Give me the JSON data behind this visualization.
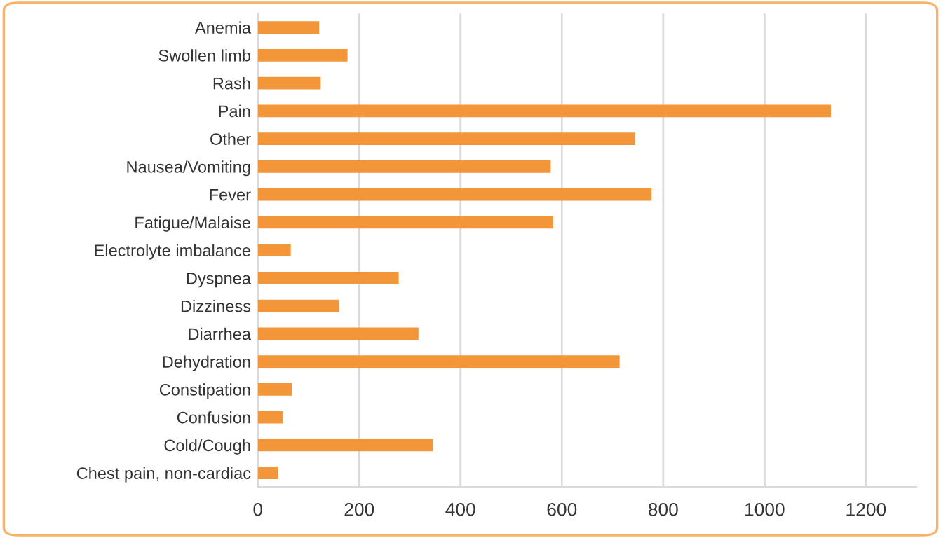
{
  "chart_data": {
    "type": "bar",
    "orientation": "horizontal",
    "categories": [
      "Anemia",
      "Swollen limb",
      "Rash",
      "Pain",
      "Other",
      "Nausea/Vomiting",
      "Fever",
      "Fatigue/Malaise",
      "Electrolyte imbalance",
      "Dyspnea",
      "Dizziness",
      "Diarrhea",
      "Dehydration",
      "Constipation",
      "Confusion",
      "Cold/Cough",
      "Chest pain, non-cardiac"
    ],
    "values": [
      121,
      177,
      124,
      1131,
      745,
      578,
      777,
      583,
      65,
      278,
      161,
      317,
      714,
      67,
      50,
      346,
      40
    ],
    "color": "#f39539",
    "xlim": [
      0,
      1300
    ],
    "xticks": [
      0,
      200,
      400,
      600,
      800,
      1000,
      1200
    ],
    "grid": "x",
    "legend": false
  }
}
